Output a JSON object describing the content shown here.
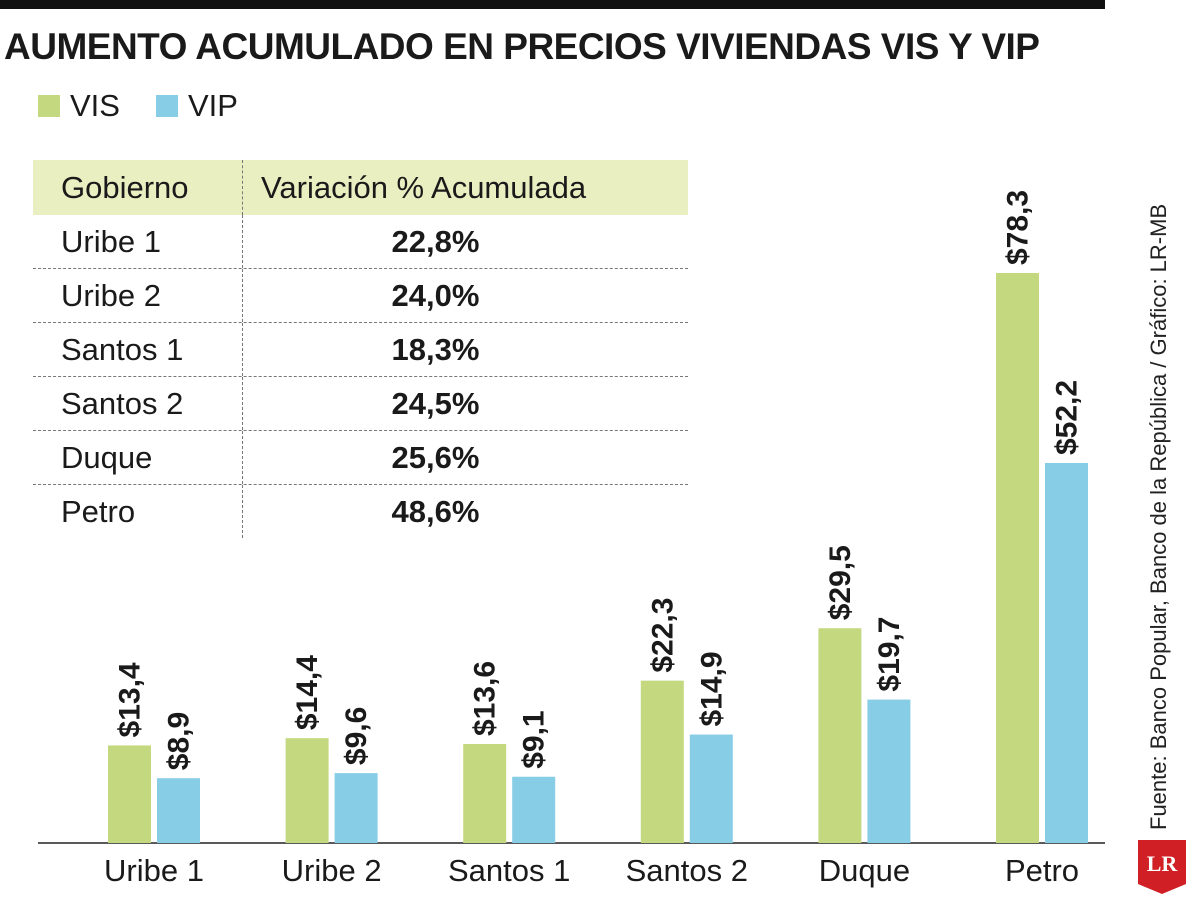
{
  "title": "AUMENTO ACUMULADO EN PRECIOS VIVIENDAS VIS Y VIP",
  "legend": [
    {
      "name": "VIS",
      "color": "#c4d97f"
    },
    {
      "name": "VIP",
      "color": "#87cde6"
    }
  ],
  "table": {
    "headers": [
      "Gobierno",
      "Variación % Acumulada"
    ],
    "rows": [
      {
        "gobierno": "Uribe 1",
        "variacion": "22,8%"
      },
      {
        "gobierno": "Uribe 2",
        "variacion": "24,0%"
      },
      {
        "gobierno": "Santos 1",
        "variacion": "18,3%"
      },
      {
        "gobierno": "Santos 2",
        "variacion": "24,5%"
      },
      {
        "gobierno": "Duque",
        "variacion": "25,6%"
      },
      {
        "gobierno": "Petro",
        "variacion": "48,6%"
      }
    ]
  },
  "source": "Fuente: Banco Popular, Banco de la República / Gráfico: LR-MB",
  "logo_text": "LR",
  "chart_data": {
    "type": "bar",
    "title": "AUMENTO ACUMULADO EN PRECIOS VIVIENDAS VIS Y VIP",
    "categories": [
      "Uribe 1",
      "Uribe 2",
      "Santos 1",
      "Santos 2",
      "Duque",
      "Petro"
    ],
    "series": [
      {
        "name": "VIS",
        "color": "#c4d97f",
        "values": [
          13.4,
          14.4,
          13.6,
          22.3,
          29.5,
          78.3
        ],
        "labels": [
          "$13,4",
          "$14,4",
          "$13,6",
          "$22,3",
          "$29,5",
          "$78,3"
        ]
      },
      {
        "name": "VIP",
        "color": "#87cde6",
        "values": [
          8.9,
          9.6,
          9.1,
          14.9,
          19.7,
          52.2
        ],
        "labels": [
          "$8,9",
          "$9,6",
          "$9,1",
          "$14,9",
          "$19,7",
          "$52,2"
        ]
      }
    ],
    "ylim": [
      0,
      78.3
    ],
    "grid": false,
    "legend_position": "top-left"
  }
}
